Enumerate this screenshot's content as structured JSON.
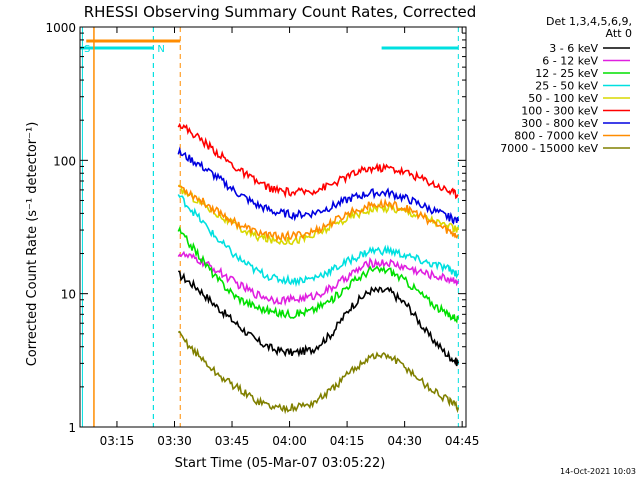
{
  "chart_data": {
    "type": "line",
    "title": "RHESSI Observing Summary Count Rates, Corrected",
    "xlabel": "Start Time (05-Mar-07 03:05:22)",
    "ylabel": "Corrected Count Rate (s⁻¹ detector⁻¹)",
    "y_scale": "log",
    "ylim": [
      1,
      1000
    ],
    "xlim": [
      "03:05:22",
      "04:46"
    ],
    "x_ticks": [
      "03:15",
      "03:30",
      "03:45",
      "04:00",
      "04:15",
      "04:30",
      "04:45"
    ],
    "y_ticks": [
      "1",
      "10",
      "100",
      "1000"
    ],
    "legend_header": [
      "Det 1,3,4,5,6,9,",
      "Att 0"
    ],
    "legend_position": "right",
    "footer_date": "14-Oct-2021 10:03",
    "markers": [
      {
        "label": "S",
        "color": "#00e0e0",
        "from": "03:05:22",
        "to": "03:24:30"
      },
      {
        "label": "N",
        "color": "#00e0e0",
        "from": "03:24:30",
        "to": "03:24:30"
      },
      {
        "label": "",
        "color": "#ff8c00",
        "from": "03:07:00",
        "to": "03:31:30"
      },
      {
        "label": "",
        "color": "#00e0e0",
        "from": "04:24:00",
        "to": "04:44:00"
      }
    ],
    "series": [
      {
        "name": "3 - 6 keV",
        "color": "#000000",
        "x": [
          "03:31",
          "03:36",
          "03:41",
          "03:46",
          "03:51",
          "03:56",
          "04:01",
          "04:06",
          "04:11",
          "04:16",
          "04:21",
          "04:26",
          "04:31",
          "04:36",
          "04:41",
          "04:44"
        ],
        "y": [
          14,
          11,
          8,
          6,
          4.5,
          3.8,
          3.6,
          3.8,
          5,
          8,
          10.5,
          10.5,
          8,
          5,
          3.5,
          3
        ]
      },
      {
        "name": "6 - 12 keV",
        "color": "#e020e0",
        "x": [
          "03:31",
          "03:36",
          "03:41",
          "03:46",
          "03:51",
          "03:56",
          "04:01",
          "04:06",
          "04:11",
          "04:16",
          "04:21",
          "04:26",
          "04:31",
          "04:36",
          "04:41",
          "04:44"
        ],
        "y": [
          20,
          18,
          15,
          12,
          10,
          9,
          9,
          9.5,
          11,
          14,
          17,
          17,
          15.5,
          14,
          13,
          12.5
        ]
      },
      {
        "name": "12 - 25 keV",
        "color": "#00e000",
        "x": [
          "03:31",
          "03:36",
          "03:41",
          "03:46",
          "03:51",
          "03:56",
          "04:01",
          "04:06",
          "04:11",
          "04:16",
          "04:21",
          "04:26",
          "04:31",
          "04:36",
          "04:41",
          "04:44"
        ],
        "y": [
          30,
          20,
          13,
          9.5,
          8,
          7.2,
          7,
          7.5,
          9,
          12,
          15,
          15,
          12,
          9,
          7,
          6.5
        ]
      },
      {
        "name": "25 - 50 keV",
        "color": "#00e0e0",
        "x": [
          "03:31",
          "03:36",
          "03:41",
          "03:46",
          "03:51",
          "03:56",
          "04:01",
          "04:06",
          "04:11",
          "04:16",
          "04:21",
          "04:26",
          "04:31",
          "04:36",
          "04:41",
          "04:44"
        ],
        "y": [
          55,
          38,
          26,
          19,
          15,
          13,
          12.5,
          13,
          15,
          18,
          21,
          21,
          19,
          17,
          15.5,
          14
        ]
      },
      {
        "name": "50 - 100 keV",
        "color": "#d8d800",
        "x": [
          "03:31",
          "03:36",
          "03:41",
          "03:46",
          "03:51",
          "03:56",
          "04:01",
          "04:06",
          "04:11",
          "04:16",
          "04:21",
          "04:26",
          "04:31",
          "04:36",
          "04:41",
          "04:44"
        ],
        "y": [
          62,
          50,
          40,
          32,
          27,
          25,
          25,
          27,
          32,
          38,
          43,
          44,
          41,
          37,
          32,
          30
        ]
      },
      {
        "name": "100 - 300 keV",
        "color": "#ff0000",
        "x": [
          "03:31",
          "03:36",
          "03:41",
          "03:46",
          "03:51",
          "03:56",
          "04:01",
          "04:06",
          "04:11",
          "04:16",
          "04:21",
          "04:26",
          "04:31",
          "04:36",
          "04:41",
          "04:44"
        ],
        "y": [
          190,
          150,
          115,
          88,
          70,
          60,
          57,
          59,
          66,
          78,
          87,
          88,
          80,
          70,
          60,
          55
        ]
      },
      {
        "name": "300 - 800 keV",
        "color": "#0000e0",
        "x": [
          "03:31",
          "03:36",
          "03:41",
          "03:46",
          "03:51",
          "03:56",
          "04:01",
          "04:06",
          "04:11",
          "04:16",
          "04:21",
          "04:26",
          "04:31",
          "04:36",
          "04:41",
          "04:44"
        ],
        "y": [
          115,
          95,
          75,
          58,
          47,
          41,
          39,
          40,
          45,
          52,
          57,
          57,
          51,
          44,
          38,
          35
        ]
      },
      {
        "name": "800 - 7000 keV",
        "color": "#ff8c00",
        "x": [
          "03:31",
          "03:36",
          "03:41",
          "03:46",
          "03:51",
          "03:56",
          "04:01",
          "04:06",
          "04:11",
          "04:16",
          "04:21",
          "04:26",
          "04:31",
          "04:36",
          "04:41",
          "04:44"
        ],
        "y": [
          65,
          52,
          42,
          34,
          29,
          27,
          27,
          29,
          34,
          41,
          46,
          47,
          43,
          36,
          30,
          27
        ]
      },
      {
        "name": "7000 - 15000 keV",
        "color": "#808000",
        "x": [
          "03:31",
          "03:36",
          "03:41",
          "03:46",
          "03:51",
          "03:56",
          "04:01",
          "04:06",
          "04:11",
          "04:16",
          "04:21",
          "04:26",
          "04:31",
          "04:36",
          "04:41",
          "04:44"
        ],
        "y": [
          5,
          3.5,
          2.5,
          2,
          1.6,
          1.4,
          1.4,
          1.5,
          1.9,
          2.6,
          3.4,
          3.4,
          2.7,
          2,
          1.6,
          1.4
        ]
      }
    ]
  }
}
